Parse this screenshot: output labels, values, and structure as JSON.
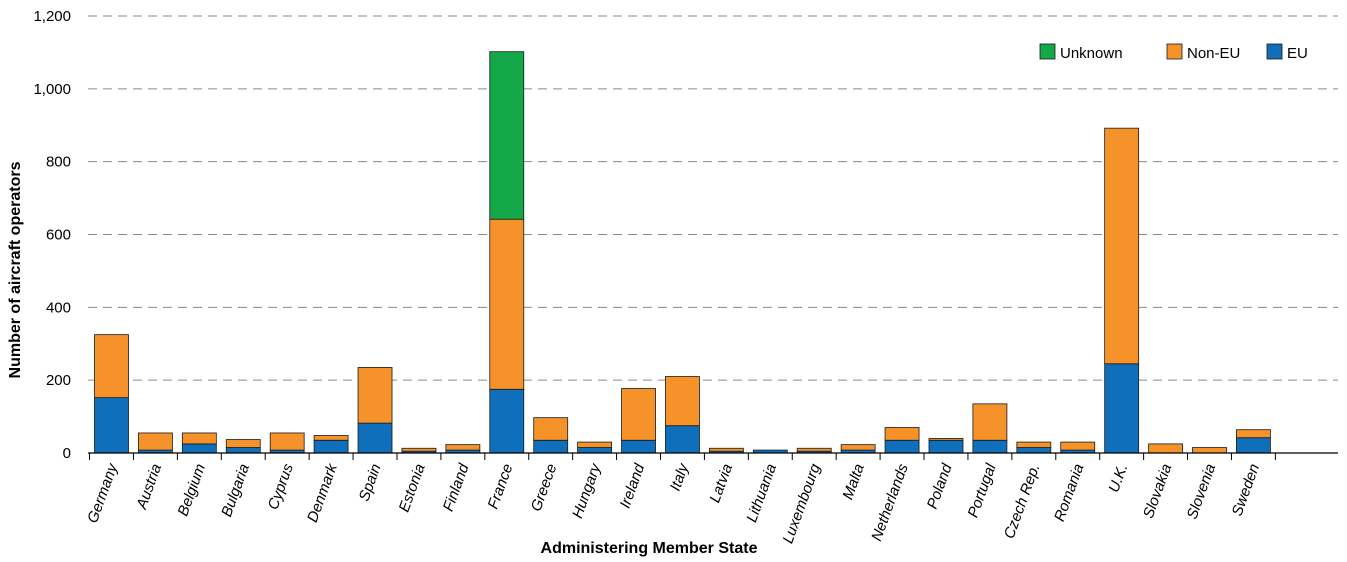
{
  "chart_data": {
    "type": "bar",
    "stacked": true,
    "xlabel": "Administering Member State",
    "ylabel": "Number of aircraft operators",
    "ylim": [
      0,
      1200
    ],
    "yticks": [
      0,
      200,
      400,
      600,
      800,
      1000,
      1200
    ],
    "ytick_labels": [
      "0",
      "200",
      "400",
      "600",
      "800",
      "1,000",
      "1,200"
    ],
    "grid": true,
    "legend_position": "top-right",
    "categories": [
      "Germany",
      "Austria",
      "Belgium",
      "Bulgaria",
      "Cyprus",
      "Denmark",
      "Spain",
      "Estonia",
      "Finland",
      "France",
      "Greece",
      "Hungary",
      "Ireland",
      "Italy",
      "Latvia",
      "Lithuania",
      "Luxembourg",
      "Malta",
      "Netherlands",
      "Poland",
      "Portugal",
      "Czech Rep.",
      "Romania",
      "U.K.",
      "Slovakia",
      "Slovenia",
      "Sweden"
    ],
    "series": [
      {
        "name": "EU",
        "color": "#0f6fba",
        "values": [
          152,
          8,
          25,
          15,
          8,
          35,
          82,
          5,
          8,
          175,
          35,
          15,
          35,
          75,
          5,
          8,
          5,
          8,
          35,
          35,
          35,
          15,
          8,
          245,
          0,
          0,
          42
        ]
      },
      {
        "name": "Non-EU",
        "color": "#f5922a",
        "values": [
          173,
          47,
          30,
          22,
          47,
          13,
          153,
          8,
          15,
          467,
          62,
          15,
          142,
          135,
          8,
          0,
          8,
          15,
          35,
          5,
          100,
          15,
          22,
          647,
          25,
          15,
          22
        ]
      },
      {
        "name": "Unknown",
        "color": "#14a84a",
        "values": [
          0,
          0,
          0,
          0,
          0,
          0,
          0,
          0,
          0,
          460,
          0,
          0,
          0,
          0,
          0,
          0,
          0,
          0,
          0,
          0,
          0,
          0,
          0,
          0,
          0,
          0,
          0
        ]
      }
    ],
    "legend_order": [
      "Unknown",
      "Non-EU",
      "EU"
    ]
  }
}
